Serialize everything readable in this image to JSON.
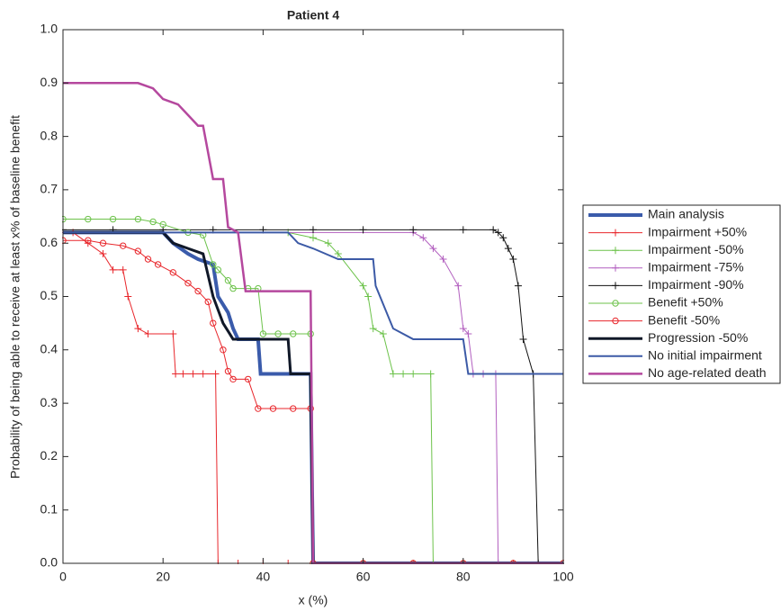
{
  "chart_data": {
    "type": "line",
    "title": "Patient 4",
    "xlabel": "x (%)",
    "ylabel": "Probability of being able to receive at least x% of baseline benefit",
    "xlim": [
      0,
      100
    ],
    "ylim": [
      0,
      1
    ],
    "xticks": [
      0,
      20,
      40,
      60,
      80,
      100
    ],
    "yticks": [
      {
        "value": 0,
        "label": "0.0"
      },
      0.1,
      0.2,
      0.3,
      0.4,
      0.5,
      0.6,
      0.7,
      0.8,
      0.9,
      {
        "value": 1,
        "label": "1.0"
      }
    ],
    "legend": "right",
    "series": [
      {
        "name": "Main analysis",
        "color": "#3a5bab",
        "width": 4,
        "marker": "none",
        "x": [
          0,
          20,
          22,
          25,
          27,
          30,
          31,
          33,
          34,
          35,
          39,
          39.5,
          49.5,
          50,
          100
        ],
        "values": [
          0.62,
          0.62,
          0.6,
          0.58,
          0.57,
          0.56,
          0.5,
          0.47,
          0.44,
          0.42,
          0.42,
          0.355,
          0.355,
          0,
          0
        ]
      },
      {
        "name": "Impairment +50%",
        "color": "#e8262b",
        "width": 1,
        "marker": "plus",
        "x": [
          0,
          2,
          5,
          8,
          10,
          12,
          13,
          15,
          17,
          22,
          22.5,
          24,
          26,
          28,
          30.5,
          31,
          35,
          40,
          45,
          50,
          60,
          70,
          80,
          90,
          100
        ],
        "values": [
          0.62,
          0.62,
          0.6,
          0.58,
          0.55,
          0.55,
          0.5,
          0.44,
          0.43,
          0.43,
          0.355,
          0.355,
          0.355,
          0.355,
          0.355,
          0,
          0,
          0,
          0,
          0,
          0,
          0,
          0,
          0,
          0
        ]
      },
      {
        "name": "Impairment -50%",
        "color": "#6cc24a",
        "width": 1,
        "marker": "plus",
        "x": [
          0,
          45,
          50,
          53,
          55,
          60,
          61,
          62,
          64,
          66,
          68,
          70,
          73.5,
          74,
          100
        ],
        "values": [
          0.62,
          0.62,
          0.61,
          0.6,
          0.58,
          0.52,
          0.5,
          0.44,
          0.43,
          0.355,
          0.355,
          0.355,
          0.355,
          0,
          0
        ]
      },
      {
        "name": "Impairment -75%",
        "color": "#b25fbf",
        "width": 1,
        "marker": "plus",
        "x": [
          0,
          70,
          72,
          74,
          76,
          79,
          80,
          81,
          82,
          84,
          86.5,
          87,
          100
        ],
        "values": [
          0.62,
          0.62,
          0.61,
          0.59,
          0.57,
          0.52,
          0.44,
          0.43,
          0.355,
          0.355,
          0.355,
          0,
          0
        ]
      },
      {
        "name": "Impairment -90%",
        "color": "#111111",
        "width": 1,
        "marker": "plus",
        "x": [
          0,
          10,
          20,
          30,
          40,
          50,
          60,
          70,
          80,
          86,
          87,
          88,
          89,
          90,
          91,
          92,
          94,
          95,
          100
        ],
        "values": [
          0.625,
          0.625,
          0.625,
          0.625,
          0.625,
          0.625,
          0.625,
          0.625,
          0.625,
          0.625,
          0.62,
          0.61,
          0.59,
          0.57,
          0.52,
          0.42,
          0.355,
          0,
          0
        ]
      },
      {
        "name": "Benefit +50%",
        "color": "#6cc24a",
        "width": 1,
        "marker": "circle",
        "x": [
          0,
          5,
          10,
          15,
          18,
          20,
          25,
          28,
          30,
          31,
          33,
          34,
          37,
          39,
          40,
          43,
          46,
          49.5,
          50,
          60,
          70,
          80,
          90,
          100
        ],
        "values": [
          0.645,
          0.645,
          0.645,
          0.645,
          0.64,
          0.635,
          0.62,
          0.615,
          0.56,
          0.55,
          0.53,
          0.515,
          0.515,
          0.515,
          0.43,
          0.43,
          0.43,
          0.43,
          0,
          0,
          0,
          0,
          0,
          0
        ]
      },
      {
        "name": "Benefit -50%",
        "color": "#e8262b",
        "width": 1,
        "marker": "circle",
        "x": [
          0,
          5,
          8,
          12,
          15,
          17,
          19,
          22,
          25,
          27,
          29,
          30,
          32,
          33,
          34,
          37,
          39,
          42,
          46,
          49.5,
          50,
          60,
          70,
          80,
          90,
          100
        ],
        "values": [
          0.605,
          0.605,
          0.6,
          0.595,
          0.585,
          0.57,
          0.56,
          0.545,
          0.525,
          0.51,
          0.49,
          0.45,
          0.4,
          0.36,
          0.345,
          0.345,
          0.29,
          0.29,
          0.29,
          0.29,
          0,
          0,
          0,
          0,
          0,
          0
        ]
      },
      {
        "name": "Progression -50%",
        "color": "#101828",
        "width": 3,
        "marker": "none",
        "x": [
          0,
          20,
          22,
          25,
          28,
          30,
          32,
          34,
          45,
          45.5,
          49.5,
          50,
          100
        ],
        "values": [
          0.62,
          0.62,
          0.6,
          0.59,
          0.58,
          0.5,
          0.45,
          0.42,
          0.42,
          0.355,
          0.355,
          0,
          0
        ]
      },
      {
        "name": "No initial impairment",
        "color": "#3c5aa6",
        "width": 2,
        "marker": "none",
        "x": [
          0,
          45,
          47,
          50,
          55,
          62,
          62.5,
          66,
          70,
          80,
          81,
          100
        ],
        "values": [
          0.62,
          0.62,
          0.6,
          0.59,
          0.57,
          0.57,
          0.52,
          0.44,
          0.42,
          0.42,
          0.355,
          0.355
        ]
      },
      {
        "name": "No age-related death",
        "color": "#b5489e",
        "width": 2.5,
        "marker": "none",
        "x": [
          0,
          15,
          18,
          20,
          23,
          25,
          27,
          28,
          30,
          32,
          33,
          35,
          36.5,
          49.5,
          50,
          100
        ],
        "values": [
          0.9,
          0.9,
          0.89,
          0.87,
          0.86,
          0.84,
          0.82,
          0.82,
          0.72,
          0.72,
          0.63,
          0.62,
          0.51,
          0.51,
          0,
          0
        ]
      }
    ]
  }
}
